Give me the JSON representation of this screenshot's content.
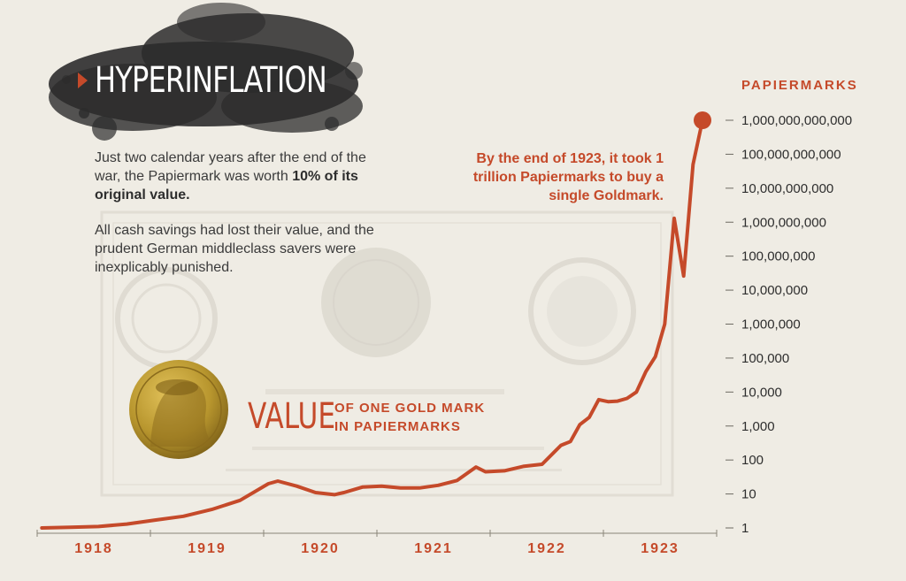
{
  "title": "HYPERINFLATION",
  "intro": {
    "p1_text": "Just two calendar years after the end of the war, the Papiermark was worth ",
    "p1_bold": "10% of its original value.",
    "p2": "All cash savings had lost their value, and the prudent German middleclass savers were inexplicably punished."
  },
  "callout": "By the end of 1923, it took 1 trillion Papiermarks to buy a single Goldmark.",
  "coin_label": {
    "big": "VALUE",
    "line1": "OF ONE GOLD MARK",
    "line2": "IN PAPIERMARKS"
  },
  "colors": {
    "accent": "#c54a2a",
    "text": "#3b3b3b",
    "background": "#efece4",
    "coin": "#b8962e"
  },
  "chart_data": {
    "type": "line",
    "ylabel": "PAPIERMARKS",
    "y_scale": "log",
    "ylim": [
      1,
      1000000000000
    ],
    "y_ticks": [
      {
        "value": 1000000000000,
        "label": "1,000,000,000,000"
      },
      {
        "value": 100000000000,
        "label": "100,000,000,000"
      },
      {
        "value": 10000000000,
        "label": "10,000,000,000"
      },
      {
        "value": 1000000000,
        "label": "1,000,000,000"
      },
      {
        "value": 100000000,
        "label": "100,000,000"
      },
      {
        "value": 10000000,
        "label": "10,000,000"
      },
      {
        "value": 1000000,
        "label": "1,000,000"
      },
      {
        "value": 100000,
        "label": "100,000"
      },
      {
        "value": 10000,
        "label": "10,000"
      },
      {
        "value": 1000,
        "label": "1,000"
      },
      {
        "value": 100,
        "label": "100"
      },
      {
        "value": 10,
        "label": "10"
      },
      {
        "value": 1,
        "label": "1"
      }
    ],
    "x_labels": [
      "1918",
      "1919",
      "1920",
      "1921",
      "1922",
      "1923"
    ],
    "series": [
      {
        "points": [
          [
            "1918-01",
            1.0
          ],
          [
            "1918-04",
            1.05
          ],
          [
            "1918-07",
            1.1
          ],
          [
            "1918-10",
            1.3
          ],
          [
            "1919-01",
            1.7
          ],
          [
            "1919-04",
            2.2
          ],
          [
            "1919-07",
            3.5
          ],
          [
            "1919-10",
            6.5
          ],
          [
            "1920-01",
            20
          ],
          [
            "1920-02",
            24
          ],
          [
            "1920-04",
            17
          ],
          [
            "1920-06",
            11
          ],
          [
            "1920-08",
            9.5
          ],
          [
            "1920-09",
            11
          ],
          [
            "1920-11",
            16
          ],
          [
            "1921-01",
            17
          ],
          [
            "1921-03",
            15
          ],
          [
            "1921-05",
            15
          ],
          [
            "1921-07",
            18
          ],
          [
            "1921-09",
            25
          ],
          [
            "1921-11",
            62
          ],
          [
            "1921-12",
            45
          ],
          [
            "1922-02",
            48
          ],
          [
            "1922-04",
            65
          ],
          [
            "1922-06",
            75
          ],
          [
            "1922-08",
            270
          ],
          [
            "1922-09",
            350
          ],
          [
            "1922-10",
            1100
          ],
          [
            "1922-11",
            1800
          ],
          [
            "1922-12",
            6000
          ],
          [
            "1923-01",
            5200
          ],
          [
            "1923-02",
            5400
          ],
          [
            "1923-03",
            6500
          ],
          [
            "1923-04",
            10000
          ],
          [
            "1923-05",
            40000
          ],
          [
            "1923-06",
            110000
          ],
          [
            "1923-07",
            1000000
          ],
          [
            "1923-08",
            1300000000
          ],
          [
            "1923-09",
            26000000
          ],
          [
            "1923-10",
            50000000000
          ],
          [
            "1923-11",
            1000000000000
          ]
        ]
      }
    ]
  }
}
